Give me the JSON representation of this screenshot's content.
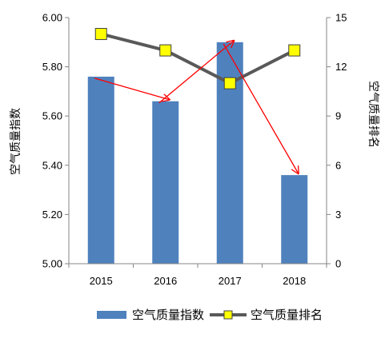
{
  "chart_data": {
    "type": "bar",
    "categories": [
      "2015",
      "2016",
      "2017",
      "2018"
    ],
    "series": [
      {
        "name": "空气质量指数",
        "type": "bar",
        "axis": "left",
        "values": [
          5.76,
          5.66,
          5.9,
          5.36
        ],
        "color": "#4F81BD"
      },
      {
        "name": "空气质量排名",
        "type": "line",
        "axis": "right",
        "values": [
          14,
          13,
          11,
          13
        ],
        "color": "#595959",
        "marker_color": "#FFFF00"
      }
    ],
    "ylabel": "空气质量指数",
    "ylim": [
      5.0,
      6.0
    ],
    "yticks": [
      "5.00",
      "5.20",
      "5.40",
      "5.60",
      "5.80",
      "6.00"
    ],
    "y2label": "空气质量排名",
    "y2lim": [
      0,
      15
    ],
    "y2ticks": [
      "0",
      "3",
      "6",
      "9",
      "12",
      "15"
    ],
    "annotations": {
      "type": "arrows",
      "color": "#FF0000",
      "path": [
        5.76,
        5.66,
        5.9,
        5.36
      ]
    },
    "legend_position": "bottom",
    "grid": false
  }
}
